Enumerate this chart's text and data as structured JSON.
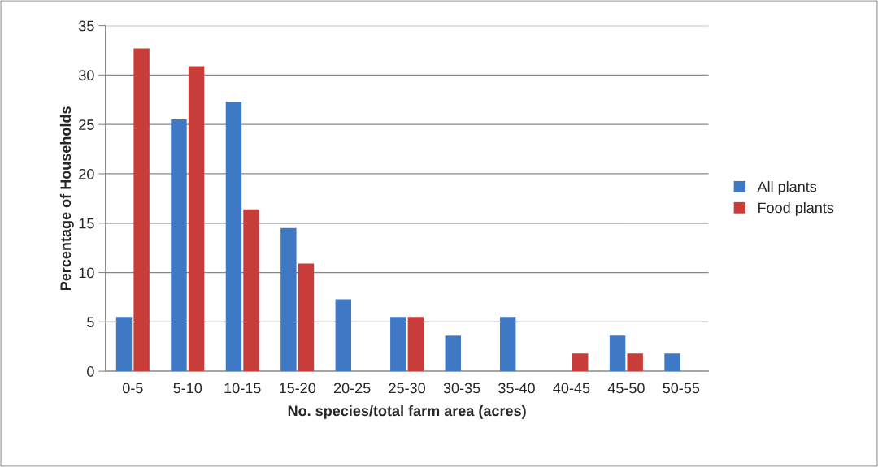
{
  "chart_data": {
    "type": "bar",
    "xlabel": "No. species/total farm area (acres)",
    "ylabel": "Percentage of Households",
    "categories": [
      "0-5",
      "5-10",
      "10-15",
      "15-20",
      "20-25",
      "25-30",
      "30-35",
      "35-40",
      "40-45",
      "45-50",
      "50-55"
    ],
    "series": [
      {
        "name": "All plants",
        "color": "#3f78c4",
        "values": [
          5.5,
          25.5,
          27.3,
          14.5,
          7.3,
          5.5,
          3.6,
          5.5,
          0,
          3.6,
          1.8
        ]
      },
      {
        "name": "Food plants",
        "color": "#c83c3a",
        "values": [
          32.7,
          30.9,
          16.4,
          10.9,
          0,
          5.5,
          0,
          0,
          1.8,
          1.8,
          0
        ]
      }
    ],
    "ylim": [
      0,
      35
    ],
    "yticks": [
      0,
      5,
      10,
      15,
      20,
      25,
      30,
      35
    ],
    "grid": "y",
    "legend": "right"
  }
}
